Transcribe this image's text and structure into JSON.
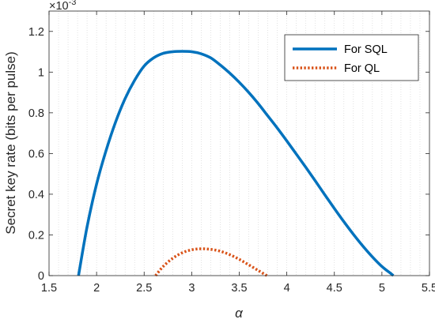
{
  "chart_data": {
    "type": "line",
    "title": "",
    "xlabel": "α",
    "ylabel": "Secret key rate (bits per pulse)",
    "y_exponent_label": "×10",
    "y_exponent_power": "-3",
    "xlim": [
      1.5,
      5.5
    ],
    "ylim": [
      0,
      0.0013
    ],
    "x_ticks": [
      1.5,
      2,
      2.5,
      3,
      3.5,
      4,
      4.5,
      5,
      5.5
    ],
    "x_tick_labels": [
      "1.5",
      "2",
      "2.5",
      "3",
      "3.5",
      "4",
      "4.5",
      "5",
      "5.5"
    ],
    "y_ticks": [
      0,
      0.0002,
      0.0004,
      0.0006,
      0.0008,
      0.001,
      0.0012
    ],
    "y_tick_labels": [
      "0",
      "0.2",
      "0.4",
      "0.6",
      "0.8",
      "1",
      "1.2"
    ],
    "grid": "x-minor-dotted",
    "legend_position": "top-right",
    "series": [
      {
        "name": "For SQL",
        "color": "#0072BD",
        "style": "solid",
        "x": [
          1.81,
          1.9,
          2.0,
          2.1,
          2.2,
          2.3,
          2.4,
          2.5,
          2.6,
          2.7,
          2.8,
          2.9,
          3.0,
          3.1,
          3.2,
          3.3,
          3.4,
          3.5,
          3.6,
          3.7,
          3.8,
          3.9,
          4.0,
          4.1,
          4.2,
          4.3,
          4.4,
          4.5,
          4.6,
          4.7,
          4.8,
          4.9,
          5.0,
          5.1,
          5.12
        ],
        "y": [
          0.0,
          0.00024,
          0.00045,
          0.000615,
          0.000755,
          0.00087,
          0.00096,
          0.00103,
          0.00107,
          0.001092,
          0.0011,
          0.001102,
          0.0011,
          0.00109,
          0.00107,
          0.001035,
          0.000995,
          0.00095,
          0.0009,
          0.000845,
          0.000785,
          0.000725,
          0.000662,
          0.000597,
          0.000532,
          0.000465,
          0.000397,
          0.00033,
          0.000265,
          0.000203,
          0.000145,
          9.2e-05,
          4.5e-05,
          8e-06,
          0.0
        ]
      },
      {
        "name": "For QL",
        "color": "#D95319",
        "style": "dotted",
        "x": [
          2.62,
          2.7,
          2.8,
          2.9,
          3.0,
          3.1,
          3.2,
          3.3,
          3.4,
          3.5,
          3.6,
          3.7,
          3.79
        ],
        "y": [
          0.0,
          4.5e-05,
          8.5e-05,
          0.000112,
          0.000127,
          0.000132,
          0.000129,
          0.00012,
          0.000103,
          8e-05,
          5.3e-05,
          2.5e-05,
          0.0
        ]
      }
    ]
  }
}
